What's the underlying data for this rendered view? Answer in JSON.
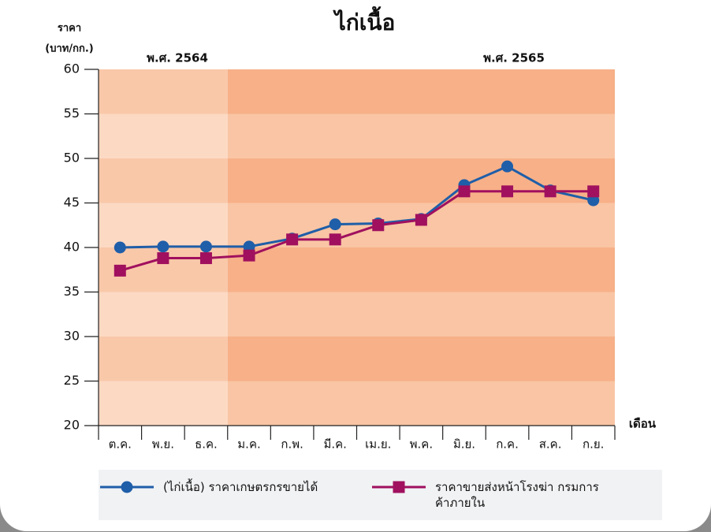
{
  "chart_data": {
    "type": "line",
    "title": "ไก่เนื้อ",
    "y_label_lines": [
      "ราคา",
      "(บาท/กก.)"
    ],
    "x_label": "เดือน",
    "annotations": [
      "พ.ศ. 2564",
      "พ.ศ. 2565"
    ],
    "categories": [
      "ต.ค.",
      "พ.ย.",
      "ธ.ค.",
      "ม.ค.",
      "ก.พ.",
      "มี.ค.",
      "เม.ย.",
      "พ.ค.",
      "มิ.ย.",
      "ก.ค.",
      "ส.ค.",
      "ก.ย."
    ],
    "series": [
      {
        "name": "(ไก่เนื้อ) ราคาเกษตรกรขายได้",
        "color": "#1f5ea8",
        "marker": "circle",
        "values": [
          40,
          40.1,
          40.1,
          40.1,
          41,
          42.6,
          42.7,
          43.2,
          47,
          49.1,
          46.4,
          45.3
        ]
      },
      {
        "name": "ราคาขายส่งหน้าโรงฆ่า กรมการค้าภายใน",
        "color": "#a0105e",
        "marker": "square",
        "values": [
          37.4,
          38.8,
          38.8,
          39.1,
          40.9,
          40.9,
          42.5,
          43.1,
          46.3,
          46.3,
          46.3,
          46.3
        ]
      }
    ],
    "ylim": [
      20,
      60
    ],
    "yticks": [
      20,
      25,
      30,
      35,
      40,
      45,
      50,
      55,
      60
    ]
  }
}
